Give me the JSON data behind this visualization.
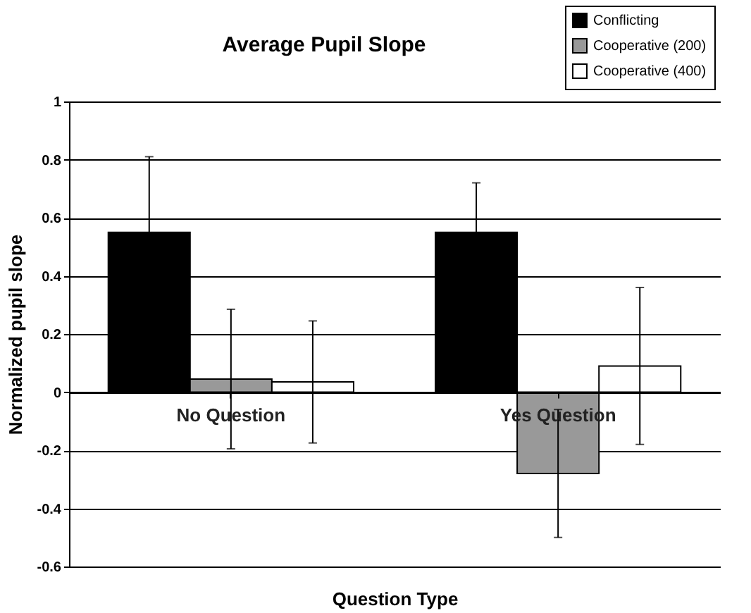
{
  "chart_data": {
    "type": "bar",
    "title": "Average Pupil Slope",
    "xlabel": "Question Type",
    "ylabel": "Normalized pupil slope",
    "categories": [
      "No Question",
      "Yes Question"
    ],
    "series": [
      {
        "name": "Conflicting",
        "color": "#000000",
        "values": [
          0.55,
          0.55
        ],
        "errors": [
          0.26,
          0.17
        ]
      },
      {
        "name": "Cooperative (200)",
        "color": "#999999",
        "values": [
          0.045,
          -0.28
        ],
        "errors": [
          0.24,
          0.22
        ]
      },
      {
        "name": "Cooperative (400)",
        "color": "#ffffff",
        "values": [
          0.035,
          0.09
        ],
        "errors": [
          0.21,
          0.27
        ]
      }
    ],
    "ylim": [
      -0.6,
      1
    ],
    "yticks": [
      -0.6,
      -0.4,
      -0.2,
      0,
      0.2,
      0.4,
      0.6,
      0.8,
      1
    ],
    "grid": "y",
    "legend": "top right"
  }
}
